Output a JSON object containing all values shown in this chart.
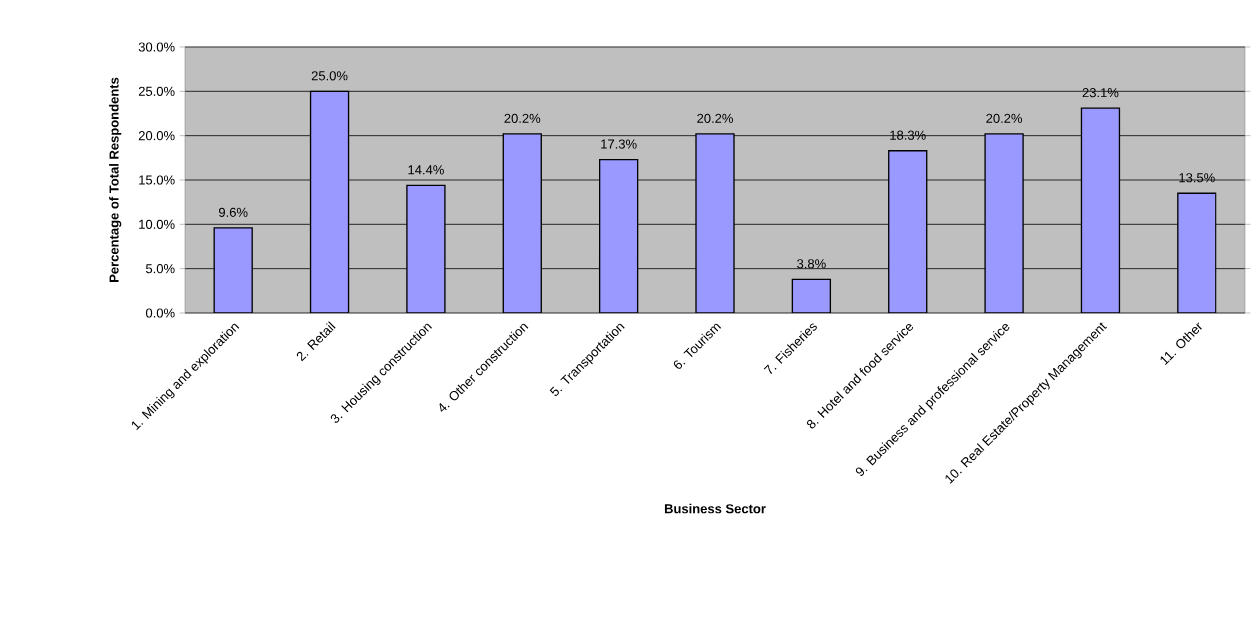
{
  "chart_data": {
    "type": "bar",
    "xlabel": "Business Sector",
    "ylabel": "Percentage of Total Respondents",
    "categories": [
      "1. Mining and exploration",
      "2. Retail",
      "3. Housing construction",
      "4. Other construction",
      "5. Transportation",
      "6. Tourism",
      "7. Fisheries",
      "8. Hotel and food service",
      "9. Business and professional service",
      "10. Real Estate/Property Management",
      "11. Other"
    ],
    "values": [
      9.6,
      25.0,
      14.4,
      20.2,
      17.3,
      20.2,
      3.8,
      18.3,
      20.2,
      23.1,
      13.5
    ],
    "value_labels": [
      "9.6%",
      "25.0%",
      "14.4%",
      "20.2%",
      "17.3%",
      "20.2%",
      "3.8%",
      "18.3%",
      "20.2%",
      "23.1%",
      "13.5%"
    ],
    "color": "#9999ff",
    "ylim": [
      0,
      30
    ],
    "yticks": [
      {
        "value": 0,
        "label": "0.0%"
      },
      {
        "value": 5,
        "label": "5.0%"
      },
      {
        "value": 10,
        "label": "10.0%"
      },
      {
        "value": 15,
        "label": "15.0%"
      },
      {
        "value": 20,
        "label": "20.0%"
      },
      {
        "value": 25,
        "label": "25.0%"
      },
      {
        "value": 30,
        "label": "30.0%"
      }
    ],
    "grid": "y"
  }
}
